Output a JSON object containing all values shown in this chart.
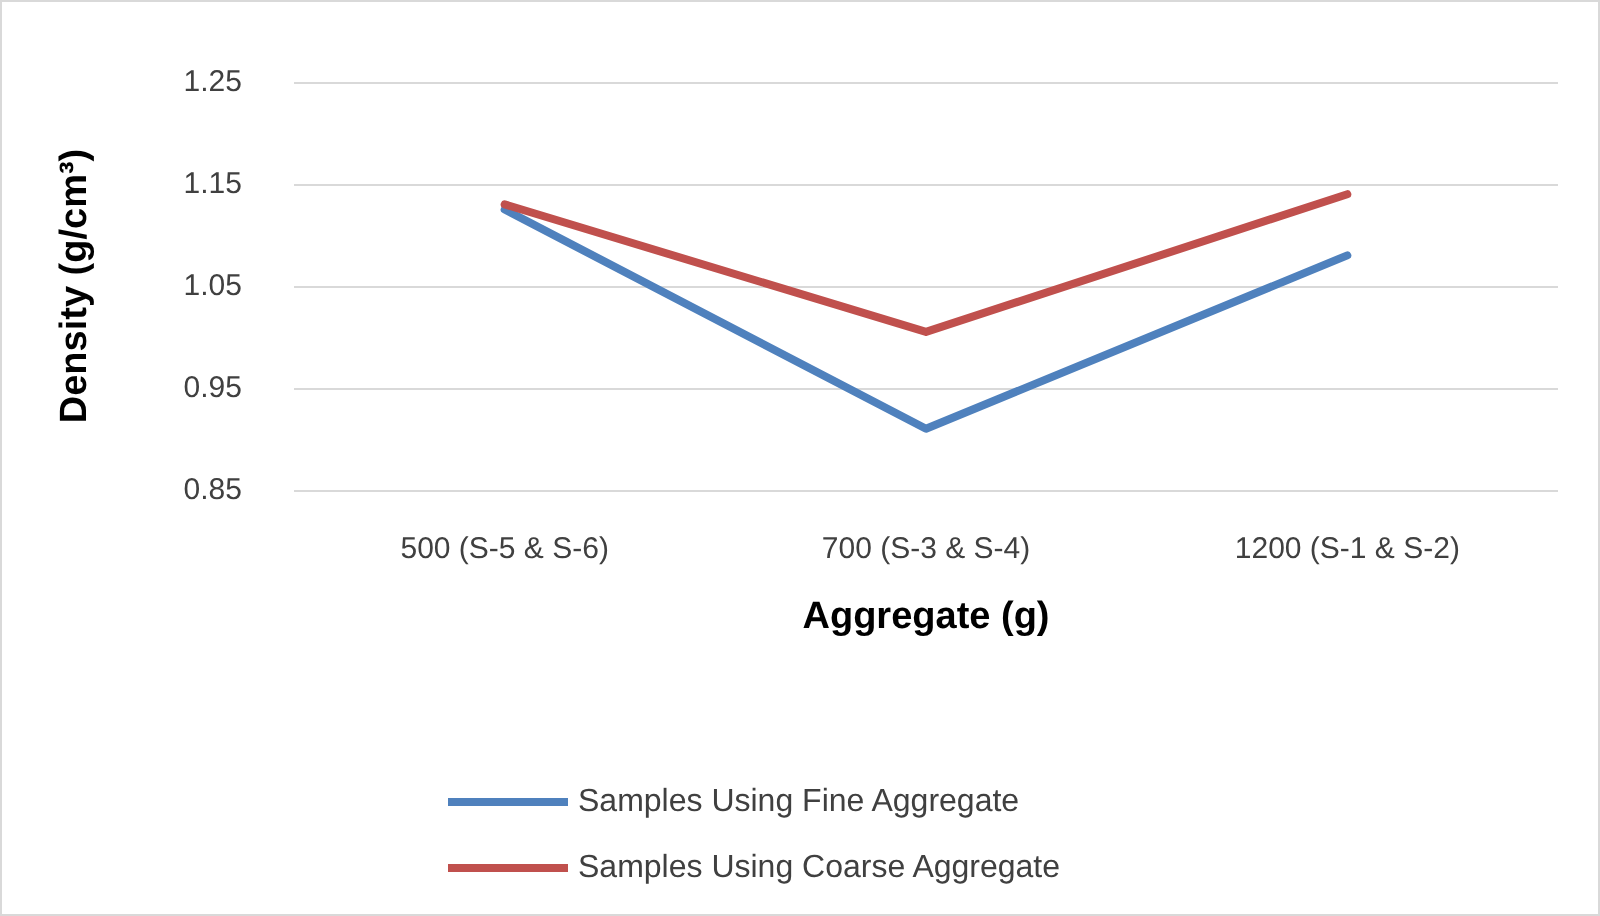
{
  "chart_data": {
    "type": "line",
    "xlabel": "Aggregate (g)",
    "ylabel": "Density (g/cm³)",
    "categories": [
      "500 (S-5 & S-6)",
      "700 (S-3 & S-4)",
      "1200 (S-1 & S-2)"
    ],
    "series": [
      {
        "name": "Samples Using Fine Aggregate",
        "color": "#4f81bd",
        "values": [
          1.125,
          0.91,
          1.08
        ]
      },
      {
        "name": "Samples Using Coarse Aggregate",
        "color": "#c0504d",
        "values": [
          1.13,
          1.005,
          1.14
        ]
      }
    ],
    "ylim": [
      0.85,
      1.25
    ],
    "yticks": [
      0.85,
      0.95,
      1.05,
      1.15,
      1.25
    ],
    "grid": "y",
    "legend": "bottom",
    "marker": "none",
    "line_style": "solid"
  }
}
